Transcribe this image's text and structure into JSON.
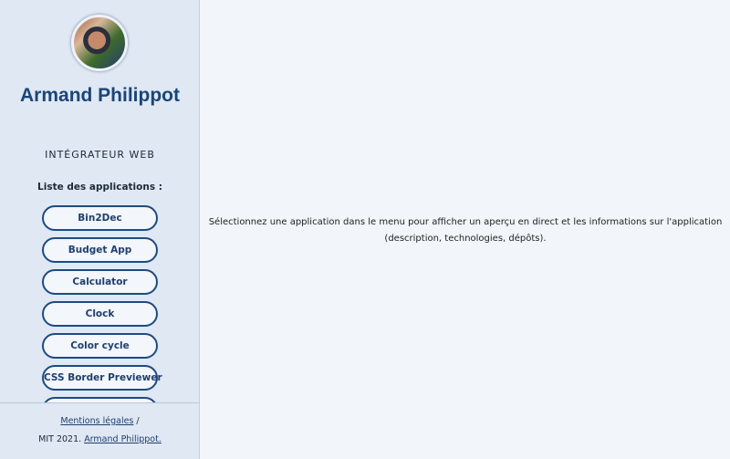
{
  "profile": {
    "name": "Armand Philippot",
    "role": "INTÉGRATEUR WEB",
    "avatar_alt": "Armand Philippot"
  },
  "apps": {
    "title": "Liste des applications :",
    "items": [
      "Bin2Dec",
      "Budget App",
      "Calculator",
      "Clock",
      "Color cycle",
      "CSS Border Previewer",
      ""
    ]
  },
  "footer": {
    "legal": "Mentions légales",
    "separator": "/",
    "license": "MIT 2021.",
    "author": "Armand Philippot."
  },
  "main": {
    "message": "Sélectionnez une application dans le menu pour afficher un aperçu en direct et les informations sur l'application (description, technologies, dépôts)."
  }
}
